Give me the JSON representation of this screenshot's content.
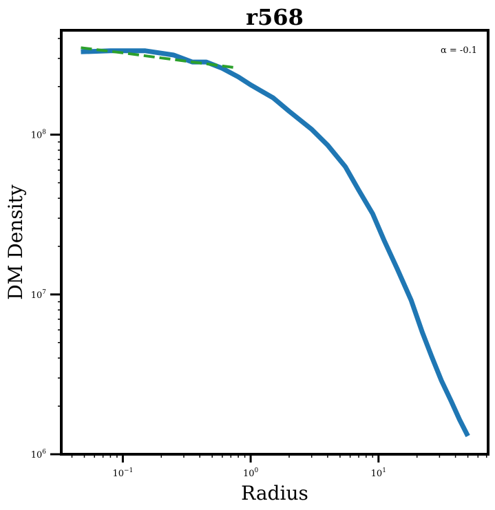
{
  "chart_data": {
    "type": "line",
    "title": "r568",
    "xlabel": "Radius",
    "ylabel": "DM Density",
    "x_scale": "log",
    "y_scale": "log",
    "xlim": [
      0.033,
      72
    ],
    "ylim": [
      1000000,
      450000000
    ],
    "grid": false,
    "x_ticks": [
      {
        "value": 0.1,
        "base": "10",
        "exp": "−1"
      },
      {
        "value": 1,
        "base": "10",
        "exp": "0"
      },
      {
        "value": 10,
        "base": "10",
        "exp": "1"
      }
    ],
    "y_ticks": [
      {
        "value": 1000000,
        "base": "10",
        "exp": "6"
      },
      {
        "value": 10000000,
        "base": "10",
        "exp": "7"
      },
      {
        "value": 100000000,
        "base": "10",
        "exp": "8"
      }
    ],
    "annotation": "α = -0.1",
    "series": [
      {
        "color": "#1f77b4",
        "style": "solid",
        "x": [
          0.047,
          0.08,
          0.15,
          0.25,
          0.35,
          0.45,
          0.6,
          0.8,
          1.0,
          1.5,
          2.0,
          3.0,
          4.0,
          5.5,
          7.0,
          9.0,
          11.0,
          14.0,
          18.0,
          22.0,
          26.0,
          31.0,
          37.0,
          43.0,
          50.0
        ],
        "y": [
          330000000,
          335000000,
          335000000,
          315000000,
          285000000,
          285000000,
          260000000,
          230000000,
          205000000,
          170000000,
          140000000,
          108000000,
          86000000,
          63000000,
          45000000,
          32000000,
          22000000,
          14500000,
          9200000,
          5800000,
          4100000,
          2900000,
          2150000,
          1650000,
          1300000
        ]
      },
      {
        "color": "#2ca02c",
        "style": "dashed",
        "x": [
          0.047,
          0.1,
          0.2,
          0.4,
          0.75
        ],
        "y": [
          350000000,
          325000000,
          302000000,
          281000000,
          263000000
        ]
      }
    ]
  }
}
